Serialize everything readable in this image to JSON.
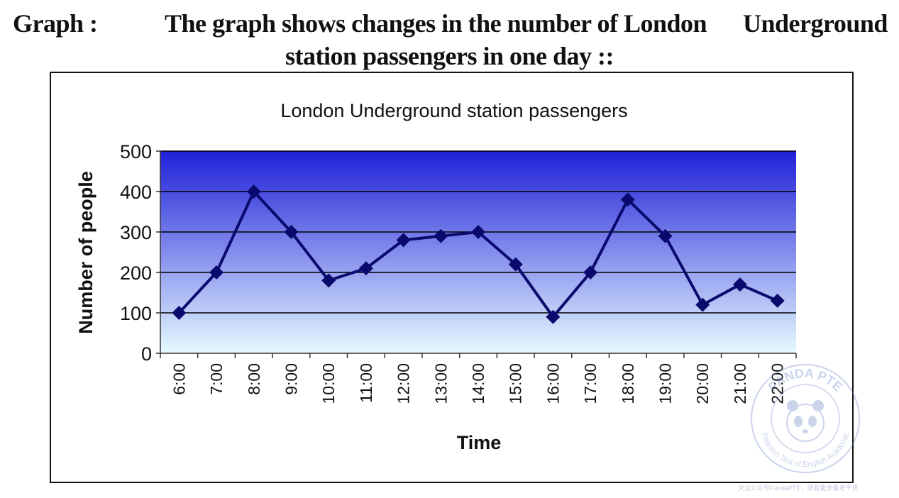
{
  "heading": {
    "label": "Graph  :",
    "line1": "The graph shows changes in the number of London      Underground",
    "line2": "station passengers in one day ::"
  },
  "chart_data": {
    "type": "line",
    "title": "London Underground station passengers",
    "xlabel": "Time",
    "ylabel": "Number of people",
    "categories": [
      "6:00",
      "7:00",
      "8:00",
      "9:00",
      "10:00",
      "11:00",
      "12:00",
      "13:00",
      "14:00",
      "15:00",
      "16:00",
      "17:00",
      "18:00",
      "19:00",
      "20:00",
      "21:00",
      "22:00"
    ],
    "values": [
      100,
      200,
      400,
      300,
      180,
      210,
      280,
      290,
      300,
      220,
      90,
      200,
      380,
      290,
      120,
      170,
      130
    ],
    "ylim": [
      0,
      500
    ],
    "yticks": [
      0,
      100,
      200,
      300,
      400,
      500
    ],
    "grid": true,
    "legend": "none",
    "colors": {
      "line": "#0a0a6e",
      "gradient_top": "#2020d8",
      "gradient_bottom": "#e6faff",
      "grid": "#000000"
    }
  },
  "watermark": {
    "top_text": "PANDA PTE",
    "ring_text": "Pearson Test of English Academic",
    "note": "关注公众号PandaPTE，获取更多备考干货"
  }
}
